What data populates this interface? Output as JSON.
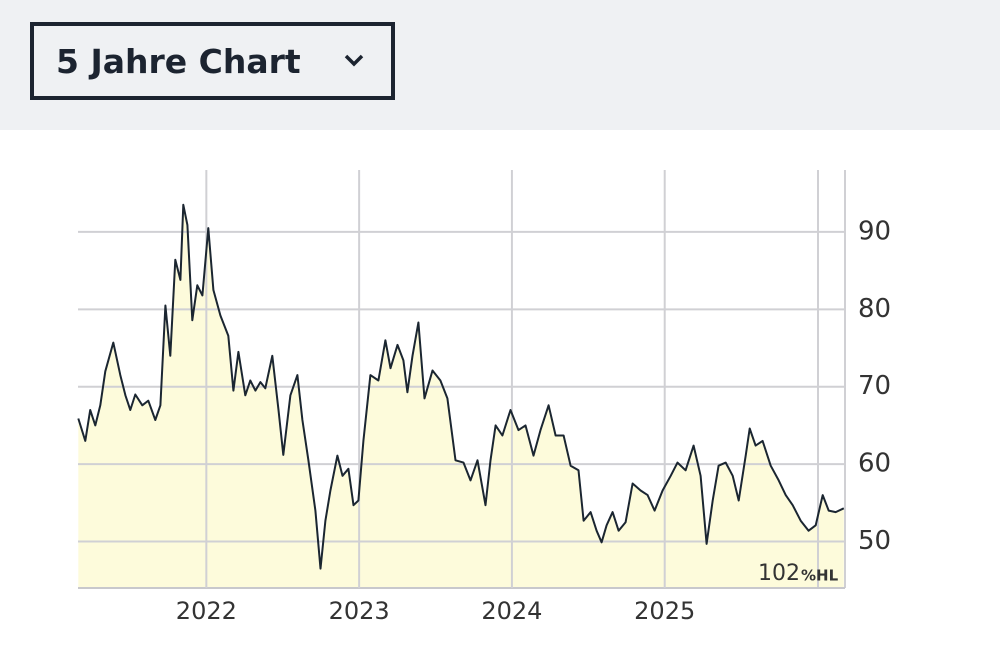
{
  "dropdown": {
    "label": "5 Jahre Chart"
  },
  "chart_data": {
    "type": "area",
    "x": [
      2021.162,
      2021.208,
      2021.24,
      2021.273,
      2021.306,
      2021.339,
      2021.391,
      2021.437,
      2021.47,
      2021.502,
      2021.535,
      2021.581,
      2021.62,
      2021.666,
      2021.699,
      2021.732,
      2021.764,
      2021.797,
      2021.83,
      2021.849,
      2021.876,
      2021.908,
      2021.941,
      2021.974,
      2022.013,
      2022.046,
      2022.092,
      2022.144,
      2022.177,
      2022.21,
      2022.255,
      2022.288,
      2022.321,
      2022.354,
      2022.386,
      2022.432,
      2022.472,
      2022.504,
      2022.55,
      2022.596,
      2022.629,
      2022.668,
      2022.714,
      2022.747,
      2022.779,
      2022.812,
      2022.858,
      2022.891,
      2022.93,
      2022.963,
      2022.995,
      2023.028,
      2023.074,
      2023.126,
      2023.172,
      2023.205,
      2023.251,
      2023.29,
      2023.316,
      2023.349,
      2023.388,
      2023.428,
      2023.48,
      2023.532,
      2023.578,
      2023.631,
      2023.683,
      2023.729,
      2023.775,
      2023.827,
      2023.86,
      2023.893,
      2023.938,
      2023.991,
      2024.043,
      2024.089,
      2024.141,
      2024.187,
      2024.24,
      2024.286,
      2024.338,
      2024.384,
      2024.436,
      2024.469,
      2024.515,
      2024.554,
      2024.587,
      2024.62,
      2024.659,
      2024.698,
      2024.744,
      2024.79,
      2024.842,
      2024.888,
      2024.934,
      2024.986,
      2025.039,
      2025.084,
      2025.137,
      2025.189,
      2025.235,
      2025.274,
      2025.314,
      2025.353,
      2025.399,
      2025.445,
      2025.484,
      2025.53,
      2025.556,
      2025.595,
      2025.641,
      2025.694,
      2025.746,
      2025.792,
      2025.838,
      2025.89,
      2025.942,
      2025.988,
      2026.034,
      2026.073,
      2026.119,
      2026.172
    ],
    "values": [
      65.9,
      63,
      67,
      65,
      67.6,
      72,
      75.7,
      71.5,
      68.9,
      67,
      69,
      67.6,
      68.2,
      65.7,
      67.6,
      80.5,
      74,
      86.4,
      83.8,
      93.5,
      90.9,
      78.6,
      83.1,
      81.8,
      90.5,
      82.5,
      79.2,
      76.6,
      69.5,
      74.5,
      68.9,
      70.8,
      69.5,
      70.6,
      69.8,
      74,
      67,
      61.2,
      68.9,
      71.5,
      65.7,
      60.5,
      54,
      46.5,
      52.7,
      56.6,
      61.1,
      58.5,
      59.4,
      54.7,
      55.3,
      63,
      71.5,
      70.8,
      76,
      72.4,
      75.4,
      73.4,
      69.3,
      74,
      78.3,
      68.5,
      72.1,
      70.8,
      68.5,
      60.5,
      60.2,
      57.9,
      60.5,
      54.7,
      60.5,
      65,
      63.7,
      67,
      64.4,
      65,
      61.1,
      64.4,
      67.6,
      63.7,
      63.7,
      59.8,
      59.2,
      52.7,
      53.8,
      51.4,
      49.9,
      52.1,
      53.8,
      51.4,
      52.5,
      57.5,
      56.6,
      56,
      54,
      56.6,
      58.5,
      60.2,
      59.2,
      62.4,
      58.5,
      49.7,
      55.3,
      59.8,
      60.2,
      58.5,
      55.3,
      61.1,
      64.6,
      62.4,
      63,
      59.8,
      57.9,
      56,
      54.7,
      52.7,
      51.4,
      52.1,
      56,
      54,
      53.8,
      54.3
    ],
    "color": "#1b2631",
    "fill_color": "#fdfbdb",
    "xlim": [
      2021.16,
      2026.18
    ],
    "xticks": [
      2022,
      2023,
      2024,
      2025
    ],
    "ylim": [
      44,
      98
    ],
    "yticks": [
      50,
      60,
      70,
      80,
      90
    ],
    "grid": true,
    "annotation": "102",
    "annotation_unit": "%HL"
  }
}
